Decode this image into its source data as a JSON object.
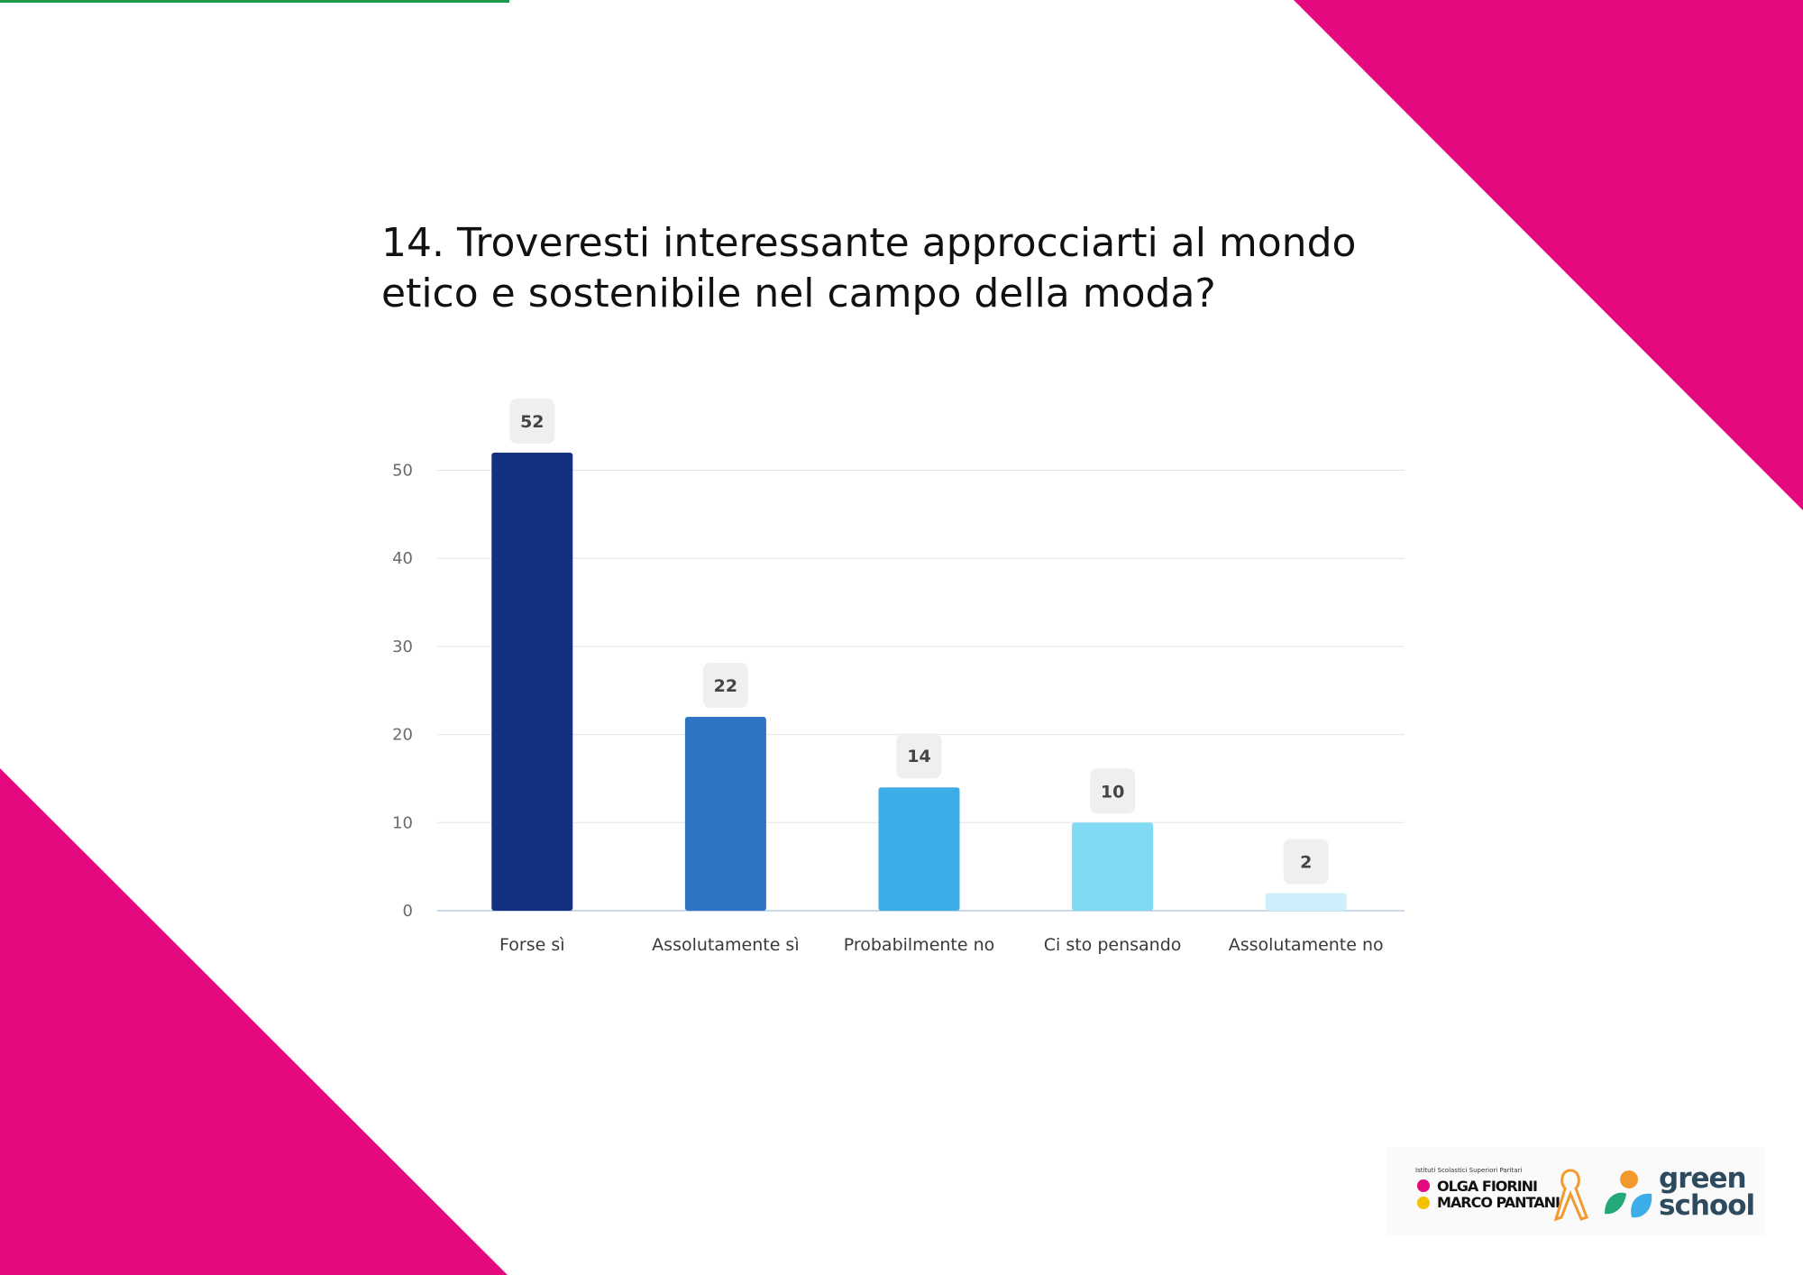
{
  "slide": {
    "title": "14. Troveresti interessante approcciarti al mondo etico e sostenibile nel campo della moda?",
    "colors": {
      "accent_pink": "#e5097f",
      "accent_green": "#1f9a4a"
    }
  },
  "chart_data": {
    "type": "bar",
    "title": "",
    "xlabel": "",
    "ylabel": "",
    "categories": [
      "Forse sì",
      "Assolutamente sì",
      "Probabilmente no",
      "Ci sto pensando",
      "Assolutamente no"
    ],
    "values": [
      52,
      22,
      14,
      10,
      2
    ],
    "colors": [
      "#143080",
      "#2d74c5",
      "#3dade7",
      "#82d9f3",
      "#cdeffb"
    ],
    "yticks": [
      0,
      10,
      20,
      30,
      40,
      50
    ],
    "ylim": [
      0,
      52
    ],
    "grid": true,
    "legend": "none",
    "data_labels": true
  },
  "logos": {
    "fiorini": {
      "small_text": "Istituti Scolastici Superiori Paritari",
      "line1": "OLGA FIORINI",
      "line2": "MARCO PANTANI",
      "icon": "ribbon-icon"
    },
    "green_school": {
      "line1": "green",
      "line2": "school",
      "icon": "leaf-icon"
    }
  }
}
